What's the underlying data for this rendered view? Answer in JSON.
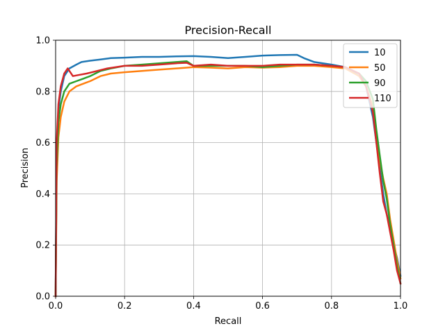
{
  "chart_data": {
    "type": "line",
    "title": "Precision-Recall",
    "xlabel": "Recall",
    "ylabel": "Precision",
    "xlim": [
      0.0,
      1.0
    ],
    "ylim": [
      0.0,
      1.0
    ],
    "xticks": [
      "0.0",
      "0.2",
      "0.4",
      "0.6",
      "0.8",
      "1.0"
    ],
    "yticks": [
      "0.0",
      "0.2",
      "0.4",
      "0.6",
      "0.8",
      "1.0"
    ],
    "grid": true,
    "legend_position": "top-right",
    "series": [
      {
        "name": "10",
        "color": "#1f77b4",
        "x": [
          0.0,
          0.003,
          0.008,
          0.015,
          0.025,
          0.04,
          0.06,
          0.075,
          0.1,
          0.13,
          0.16,
          0.2,
          0.25,
          0.3,
          0.35,
          0.4,
          0.45,
          0.5,
          0.55,
          0.6,
          0.65,
          0.7,
          0.72,
          0.75,
          0.8,
          0.84,
          0.88,
          0.9,
          0.92,
          0.93,
          0.94,
          0.95,
          0.96,
          0.97,
          0.98,
          0.99,
          1.0
        ],
        "y": [
          0.0,
          0.55,
          0.73,
          0.8,
          0.86,
          0.89,
          0.905,
          0.915,
          0.92,
          0.925,
          0.93,
          0.932,
          0.935,
          0.935,
          0.937,
          0.938,
          0.935,
          0.93,
          0.935,
          0.94,
          0.942,
          0.943,
          0.93,
          0.915,
          0.905,
          0.895,
          0.86,
          0.82,
          0.7,
          0.6,
          0.5,
          0.4,
          0.32,
          0.27,
          0.2,
          0.15,
          0.08
        ]
      },
      {
        "name": "50",
        "color": "#ff7f0e",
        "x": [
          0.0,
          0.003,
          0.008,
          0.015,
          0.025,
          0.04,
          0.06,
          0.08,
          0.1,
          0.13,
          0.16,
          0.2,
          0.25,
          0.3,
          0.35,
          0.4,
          0.45,
          0.5,
          0.55,
          0.6,
          0.65,
          0.7,
          0.75,
          0.8,
          0.84,
          0.88,
          0.9,
          0.92,
          0.93,
          0.94,
          0.95,
          0.96,
          0.97,
          0.98,
          0.99,
          1.0
        ],
        "y": [
          0.0,
          0.45,
          0.62,
          0.7,
          0.76,
          0.8,
          0.82,
          0.83,
          0.84,
          0.86,
          0.87,
          0.875,
          0.88,
          0.885,
          0.89,
          0.895,
          0.893,
          0.89,
          0.895,
          0.893,
          0.895,
          0.9,
          0.9,
          0.895,
          0.89,
          0.86,
          0.82,
          0.74,
          0.62,
          0.53,
          0.46,
          0.4,
          0.3,
          0.22,
          0.14,
          0.07
        ]
      },
      {
        "name": "90",
        "color": "#2ca02c",
        "x": [
          0.0,
          0.003,
          0.008,
          0.015,
          0.025,
          0.04,
          0.06,
          0.08,
          0.1,
          0.13,
          0.16,
          0.2,
          0.25,
          0.3,
          0.35,
          0.38,
          0.4,
          0.45,
          0.5,
          0.55,
          0.6,
          0.65,
          0.7,
          0.75,
          0.8,
          0.84,
          0.88,
          0.9,
          0.92,
          0.93,
          0.94,
          0.95,
          0.96,
          0.97,
          0.98,
          0.99,
          1.0
        ],
        "y": [
          0.0,
          0.5,
          0.68,
          0.75,
          0.8,
          0.83,
          0.84,
          0.85,
          0.86,
          0.88,
          0.89,
          0.9,
          0.905,
          0.91,
          0.915,
          0.918,
          0.9,
          0.9,
          0.9,
          0.9,
          0.895,
          0.9,
          0.905,
          0.905,
          0.9,
          0.895,
          0.87,
          0.84,
          0.77,
          0.65,
          0.55,
          0.45,
          0.38,
          0.28,
          0.2,
          0.12,
          0.05
        ]
      },
      {
        "name": "110",
        "color": "#d62728",
        "x": [
          0.0,
          0.003,
          0.008,
          0.015,
          0.025,
          0.035,
          0.05,
          0.07,
          0.09,
          0.12,
          0.15,
          0.2,
          0.25,
          0.3,
          0.35,
          0.38,
          0.4,
          0.45,
          0.5,
          0.55,
          0.6,
          0.65,
          0.7,
          0.75,
          0.8,
          0.84,
          0.88,
          0.9,
          0.92,
          0.93,
          0.94,
          0.95,
          0.96,
          0.97,
          0.98,
          0.99,
          1.0
        ],
        "y": [
          0.0,
          0.6,
          0.75,
          0.82,
          0.87,
          0.89,
          0.86,
          0.865,
          0.87,
          0.88,
          0.89,
          0.9,
          0.9,
          0.905,
          0.91,
          0.912,
          0.9,
          0.905,
          0.9,
          0.9,
          0.9,
          0.905,
          0.905,
          0.905,
          0.9,
          0.895,
          0.87,
          0.82,
          0.72,
          0.6,
          0.48,
          0.37,
          0.32,
          0.25,
          0.18,
          0.1,
          0.05
        ]
      }
    ]
  }
}
